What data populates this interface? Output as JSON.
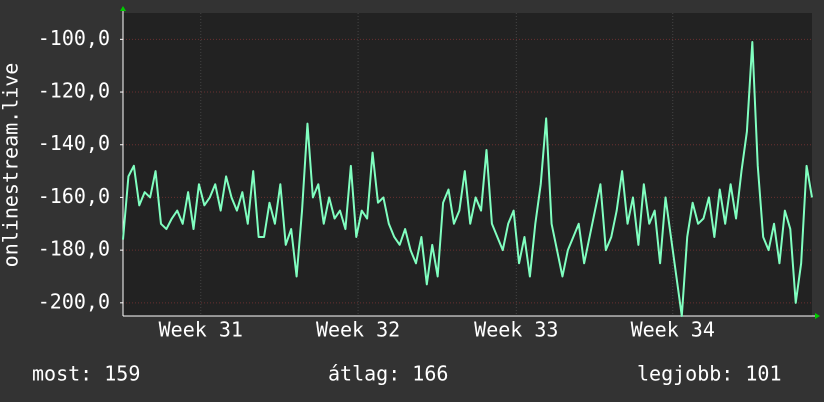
{
  "chart_data": {
    "type": "line",
    "y_label": "onlinestream.live",
    "x": [
      0,
      6,
      12,
      18,
      24,
      30,
      36,
      42,
      48,
      54,
      60,
      66,
      72,
      78,
      84,
      90,
      96,
      102,
      108,
      114,
      120,
      126,
      132,
      138,
      144,
      150,
      156,
      162,
      168,
      174,
      180,
      186,
      192,
      198,
      204,
      210,
      216,
      222,
      228,
      234,
      240,
      246,
      252,
      258,
      264,
      270,
      276,
      282,
      288,
      294,
      300,
      306,
      312,
      318,
      324,
      330,
      336,
      342,
      348,
      354,
      360,
      366,
      372,
      378,
      384,
      390,
      396,
      402,
      408,
      414,
      420,
      426,
      432,
      438,
      444,
      450,
      456,
      462,
      468,
      474,
      480,
      486,
      492,
      498,
      504,
      510,
      516,
      522,
      528,
      534,
      540,
      546,
      552,
      558,
      564,
      570,
      576,
      582,
      588,
      594,
      600,
      606,
      612,
      618,
      624,
      630,
      636,
      642,
      648,
      654,
      660,
      666,
      672,
      678,
      684,
      690,
      696,
      702,
      708,
      714,
      720,
      726,
      732,
      738,
      744,
      750,
      756,
      762
    ],
    "series": [
      {
        "name": "onlinestream.live",
        "color": "#80ffc0",
        "values": [
          -176,
          -152,
          -148,
          -163,
          -158,
          -160,
          -150,
          -170,
          -172,
          -168,
          -165,
          -170,
          -158,
          -172,
          -155,
          -163,
          -160,
          -155,
          -165,
          -152,
          -160,
          -165,
          -158,
          -170,
          -150,
          -175,
          -175,
          -162,
          -170,
          -155,
          -178,
          -172,
          -190,
          -165,
          -132,
          -160,
          -155,
          -170,
          -160,
          -168,
          -165,
          -172,
          -148,
          -175,
          -165,
          -168,
          -143,
          -162,
          -160,
          -170,
          -175,
          -178,
          -172,
          -180,
          -185,
          -175,
          -193,
          -178,
          -190,
          -162,
          -157,
          -170,
          -165,
          -150,
          -170,
          -160,
          -165,
          -142,
          -170,
          -175,
          -180,
          -170,
          -165,
          -185,
          -175,
          -190,
          -170,
          -155,
          -130,
          -170,
          -180,
          -190,
          -180,
          -175,
          -170,
          -185,
          -175,
          -165,
          -155,
          -180,
          -175,
          -165,
          -150,
          -170,
          -160,
          -178,
          -155,
          -170,
          -165,
          -185,
          -160,
          -175,
          -190,
          -205,
          -175,
          -162,
          -170,
          -168,
          -160,
          -175,
          -157,
          -170,
          -155,
          -168,
          -150,
          -135,
          -101,
          -148,
          -175,
          -180,
          -170,
          -185,
          -165,
          -172,
          -200,
          -185,
          -148,
          -160
        ]
      }
    ],
    "xlim": [
      0,
      762
    ],
    "xticks": [
      {
        "value": 86,
        "label": "Week 31"
      },
      {
        "value": 260,
        "label": "Week 32"
      },
      {
        "value": 435,
        "label": "Week 33"
      },
      {
        "value": 608,
        "label": "Week 34"
      }
    ],
    "ylim": [
      -205,
      -90
    ],
    "yticks": [
      {
        "value": -200,
        "label": "-200,0"
      },
      {
        "value": -180,
        "label": "-180,0"
      },
      {
        "value": -160,
        "label": "-160,0"
      },
      {
        "value": -140,
        "label": "-140,0"
      },
      {
        "value": -120,
        "label": "-120,0"
      },
      {
        "value": -100,
        "label": "-100,0"
      }
    ],
    "grid": true,
    "footer": [
      "most: 159",
      "átlag: 166",
      "legjobb: 101"
    ]
  }
}
